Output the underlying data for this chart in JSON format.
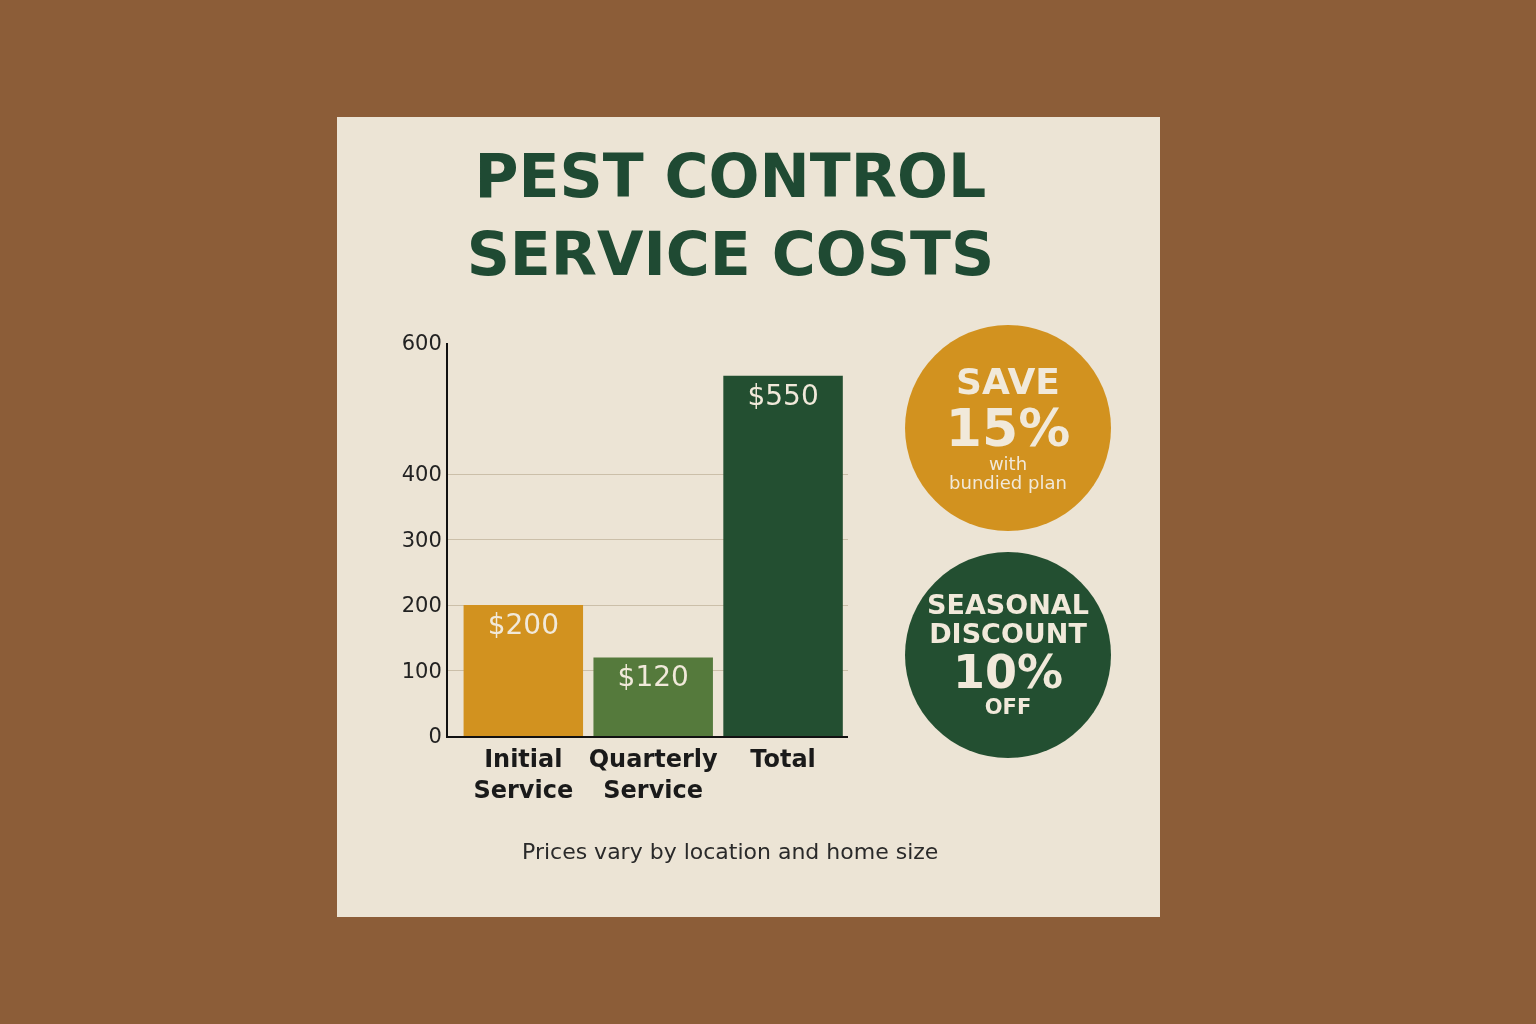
{
  "chart_data": {
    "type": "bar",
    "title": "PEST CONTROL\nSERVICE COSTS",
    "categories": [
      "Initial Service",
      "Quarterly Service",
      "Total"
    ],
    "values": [
      200,
      120,
      550
    ],
    "colors": [
      "#d2921f",
      "#557a3c",
      "#234f31"
    ],
    "value_labels": [
      "$200",
      "$120",
      "$550"
    ],
    "ylim": [
      0,
      600
    ],
    "yticks": [
      0,
      100,
      200,
      300,
      400,
      600
    ],
    "grid": "y",
    "legend": false,
    "annotations": [
      "SAVE\n15%\nwith\nbundied plan",
      "SEASONAL\nDISCOUNT\n10%\nOFF",
      "Prices vary by location and home size"
    ]
  }
}
